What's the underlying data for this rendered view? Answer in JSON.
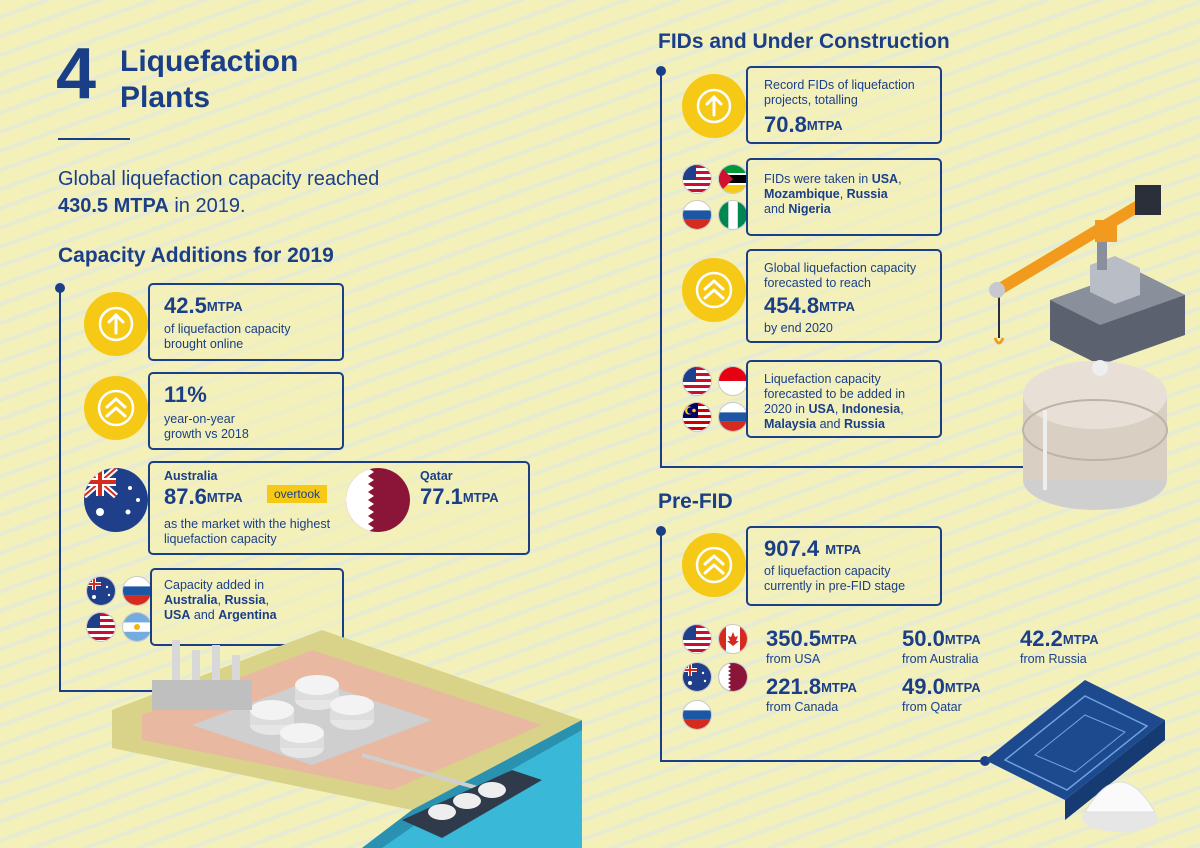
{
  "header": {
    "number": "4",
    "title_line1": "Liquefaction",
    "title_line2": "Plants"
  },
  "intro": {
    "line1": "Global liquefaction capacity reached",
    "value": "430.5 MTPA",
    "suffix": " in 2019."
  },
  "capacity_additions": {
    "title": "Capacity Additions for 2019",
    "card1": {
      "value": "42.5",
      "unit": "MTPA",
      "text1": "of liquefaction capacity",
      "text2": "brought online"
    },
    "card2": {
      "value": "11%",
      "text1": "year-on-year",
      "text2": "growth vs 2018"
    },
    "card3": {
      "country1": "Australia",
      "value1": "87.6",
      "unit1": "MTPA",
      "badge": "overtook",
      "country2": "Qatar",
      "value2": "77.1",
      "unit2": "MTPA",
      "text1": "as the market with the highest",
      "text2": "liquefaction capacity"
    },
    "card4": {
      "text1": "Capacity added in",
      "c1": "Australia",
      "sep1": ", ",
      "c2": "Russia",
      "sep2": ",",
      "c3": "USA",
      "sep3": " and ",
      "c4": "Argentina"
    }
  },
  "fids": {
    "title": "FIDs and Under Construction",
    "card1": {
      "text1": "Record FIDs of liquefaction",
      "text2": "projects, totalling",
      "value": "70.8",
      "unit": "MTPA"
    },
    "card2": {
      "text1": "FIDs were taken in ",
      "c1": "USA",
      "sep1": ",",
      "c2": "Mozambique",
      "sep2": ", ",
      "c3": "Russia",
      "text3": "and ",
      "c4": "Nigeria"
    },
    "card3": {
      "text1": "Global liquefaction capacity",
      "text2": "forecasted to reach",
      "value": "454.8",
      "unit": "MTPA",
      "text3": "by end 2020"
    },
    "card4": {
      "text1": "Liquefaction capacity",
      "text2": "forecasted to be added in",
      "text3": "2020 in ",
      "c1": "USA",
      "sep1": ", ",
      "c2": "Indonesia",
      "sep2": ",",
      "c3": "Malaysia",
      "sep3": " and ",
      "c4": "Russia"
    }
  },
  "prefid": {
    "title": "Pre-FID",
    "card1": {
      "value": "907.4",
      "unit": "MTPA",
      "text1": "of liquefaction capacity",
      "text2": "currently in pre-FID stage"
    },
    "card2": {
      "items": [
        {
          "value": "350.5",
          "unit": "MTPA",
          "label": "from USA"
        },
        {
          "value": "50.0",
          "unit": "MTPA",
          "label": "from Australia"
        },
        {
          "value": "42.2",
          "unit": "MTPA",
          "label": "from Russia"
        },
        {
          "value": "221.8",
          "unit": "MTPA",
          "label": "from Canada"
        },
        {
          "value": "49.0",
          "unit": "MTPA",
          "label": "from Qatar"
        }
      ]
    }
  },
  "colors": {
    "navy": "#1b3f87",
    "yellow": "#f6c917",
    "background": "#f3f0b9",
    "qatar_maroon": "#8a1538",
    "crane_orange": "#f29a1e",
    "sea": "#39b8d8"
  },
  "icons": [
    "arrow-up-icon",
    "double-chevron-up-icon",
    "flag-usa-icon",
    "flag-russia-icon",
    "flag-australia-icon",
    "flag-argentina-icon",
    "flag-qatar-icon",
    "flag-mozambique-icon",
    "flag-nigeria-icon",
    "flag-indonesia-icon",
    "flag-malaysia-icon",
    "flag-canada-icon"
  ]
}
